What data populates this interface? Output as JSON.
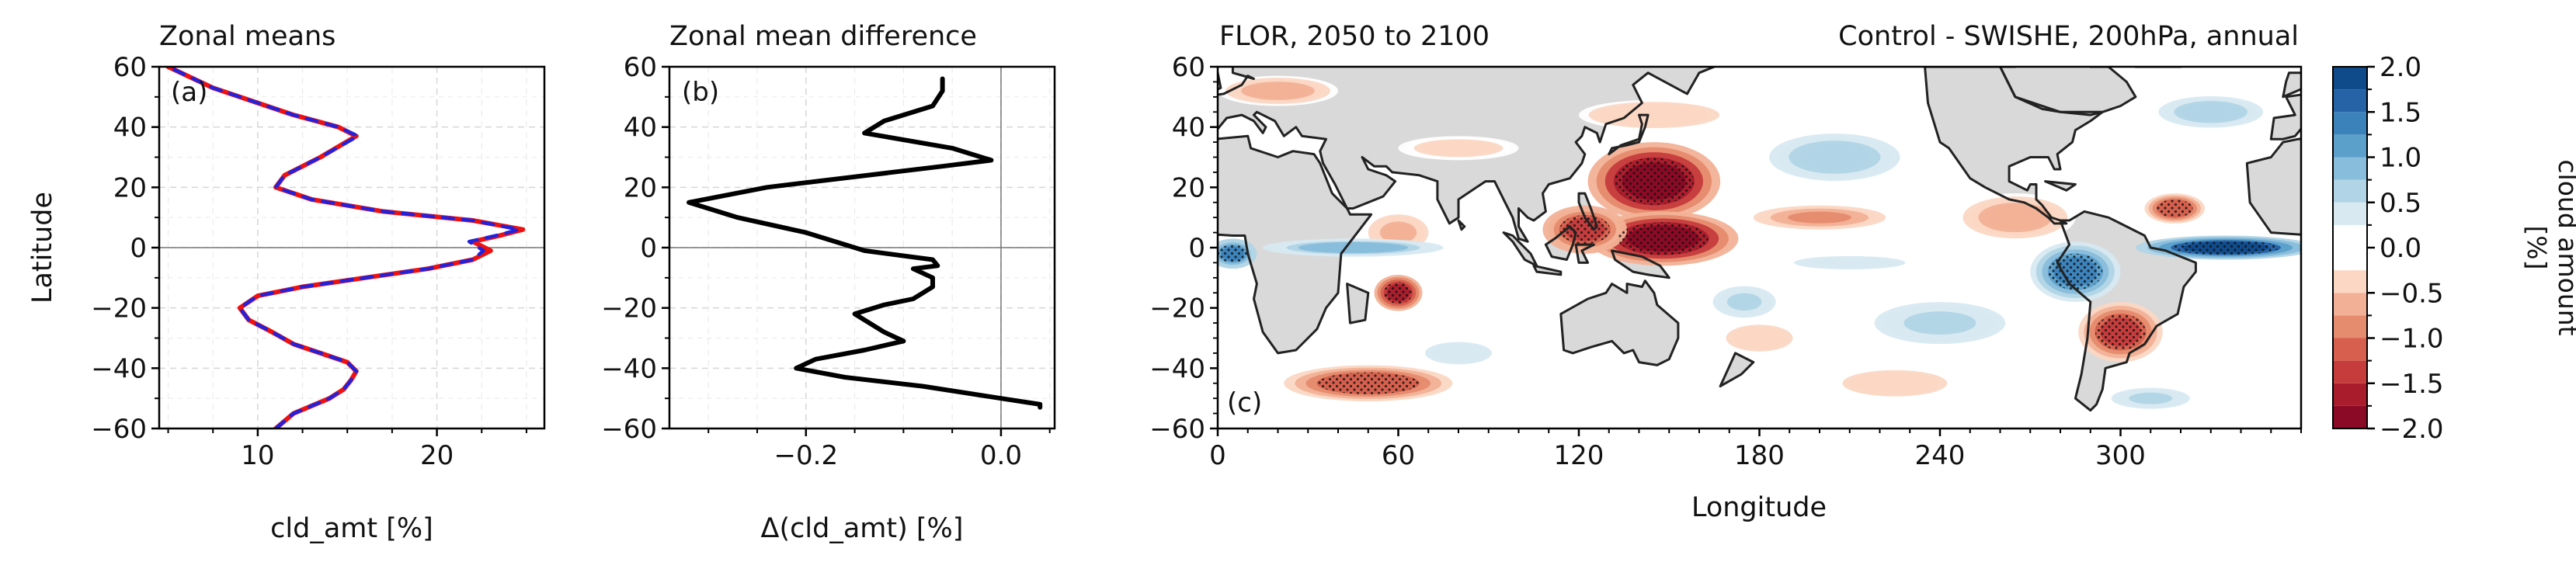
{
  "chart_data": [
    {
      "panel": "a",
      "type": "line",
      "title": "Zonal means",
      "panel_label": "(a)",
      "xlabel": "cld_amt [%]",
      "ylabel": "Latitude",
      "xlim": [
        4.5,
        26
      ],
      "ylim": [
        -60,
        60
      ],
      "x_ticks": [
        10,
        20
      ],
      "y_ticks": [
        -60,
        -40,
        -20,
        0,
        20,
        40,
        60
      ],
      "y_tick_labels": [
        "−60",
        "−40",
        "−20",
        "0",
        "20",
        "40",
        "60"
      ],
      "grid": true,
      "zero_line": "horizontal",
      "series": [
        {
          "color": "#ee1111",
          "dash": "solid",
          "x": [
            11.0,
            12.0,
            14.0,
            14.8,
            15.2,
            15.5,
            15.0,
            13.5,
            12.0,
            10.8,
            9.5,
            9.0,
            10.0,
            12.5,
            16.0,
            19.5,
            22.0,
            23.0,
            22.0,
            23.5,
            24.8,
            22.0,
            17.0,
            13.0,
            11.0,
            11.5,
            13.5,
            15.5,
            14.5,
            12.0,
            10.0,
            7.5,
            5.0
          ],
          "y": [
            -60,
            -55,
            -50,
            -47,
            -44,
            -41,
            -38,
            -35,
            -32,
            -28,
            -24,
            -20,
            -16,
            -13,
            -10,
            -7,
            -4,
            -1,
            2,
            4,
            6,
            9,
            12,
            16,
            20,
            24,
            30,
            37,
            40,
            44,
            48,
            53,
            60
          ]
        },
        {
          "color": "#2222dd",
          "dash": "dashed",
          "x": [
            11.0,
            12.0,
            14.0,
            14.8,
            15.2,
            15.5,
            15.0,
            13.5,
            12.0,
            10.8,
            9.5,
            9.0,
            10.0,
            12.5,
            16.0,
            19.5,
            22.0,
            22.6,
            21.8,
            23.3,
            24.6,
            22.0,
            17.0,
            13.0,
            11.0,
            11.5,
            13.5,
            15.6,
            14.5,
            12.0,
            10.0,
            7.5,
            5.0
          ],
          "y": [
            -60,
            -55,
            -50,
            -47,
            -44,
            -41,
            -38,
            -35,
            -32,
            -28,
            -24,
            -20,
            -16,
            -13,
            -10,
            -7,
            -4,
            -1,
            2,
            4,
            6,
            9,
            12,
            16,
            20,
            24,
            30,
            37,
            40,
            44,
            48,
            53,
            60
          ]
        }
      ]
    },
    {
      "panel": "b",
      "type": "line",
      "title": "Zonal mean difference",
      "panel_label": "(b)",
      "xlabel": "Δ(cld_amt) [%]",
      "ylabel": "",
      "xlim": [
        -0.34,
        0.055
      ],
      "ylim": [
        -60,
        60
      ],
      "x_ticks": [
        -0.2,
        0.0
      ],
      "x_tick_labels": [
        "−0.2",
        "0.0"
      ],
      "y_ticks": [
        -60,
        -40,
        -20,
        0,
        20,
        40,
        60
      ],
      "y_tick_labels": [
        "−60",
        "−40",
        "−20",
        "0",
        "20",
        "40",
        "60"
      ],
      "grid": true,
      "zero_line": "both",
      "series": [
        {
          "color": "#000000",
          "dash": "solid",
          "x": [
            0.04,
            0.04,
            0.0,
            -0.08,
            -0.16,
            -0.21,
            -0.19,
            -0.14,
            -0.1,
            -0.12,
            -0.15,
            -0.12,
            -0.09,
            -0.07,
            -0.07,
            -0.09,
            -0.065,
            -0.07,
            -0.14,
            -0.16,
            -0.2,
            -0.27,
            -0.32,
            -0.24,
            -0.06,
            -0.01,
            -0.05,
            -0.14,
            -0.12,
            -0.07,
            -0.06,
            -0.06
          ],
          "y": [
            -53,
            -52,
            -50,
            -46,
            -43,
            -40,
            -37,
            -34,
            -31,
            -28,
            -22,
            -19,
            -17,
            -13,
            -10,
            -7,
            -6,
            -4,
            -1,
            1,
            5,
            10,
            15,
            20,
            27,
            29,
            33,
            38,
            42,
            47,
            52,
            56
          ]
        }
      ]
    },
    {
      "panel": "c",
      "type": "heatmap",
      "title": "FLOR, 2050 to 2100",
      "title_right": "Control - SWISHE, 200hPa, annual",
      "panel_label": "(c)",
      "xlabel": "Longitude",
      "ylabel": "",
      "xlim": [
        0,
        360
      ],
      "ylim": [
        -60,
        60
      ],
      "x_ticks": [
        0,
        60,
        120,
        180,
        240,
        300
      ],
      "y_ticks": [
        -60,
        -40,
        -20,
        0,
        20,
        40,
        60
      ],
      "y_tick_labels": [
        "−60",
        "−40",
        "−20",
        "0",
        "20",
        "40",
        "60"
      ],
      "colorbar": {
        "label": "cloud amount [%]",
        "levels": [
          -2.0,
          -1.75,
          -1.5,
          -1.25,
          -1.0,
          -0.75,
          -0.5,
          -0.25,
          0.25,
          0.5,
          0.75,
          1.0,
          1.25,
          1.5,
          1.75,
          2.0
        ],
        "tick_values": [
          -2.0,
          -1.5,
          -1.0,
          -0.5,
          0.0,
          0.5,
          1.0,
          1.5,
          2.0
        ],
        "tick_labels": [
          "−2.0",
          "−1.5",
          "−1.0",
          "−0.5",
          "0.0",
          "0.5",
          "1.0",
          "1.5",
          "2.0"
        ],
        "tick_values_minor": [
          -1.75,
          -1.25,
          -0.75,
          0.25,
          0.75,
          1.25,
          1.75
        ],
        "colors": [
          "#8b0a25",
          "#a91c2c",
          "#c63b3c",
          "#d6604d",
          "#e58b6e",
          "#f2b196",
          "#fbd7c4",
          "#ffffff",
          "#d8e9f1",
          "#b1d5e6",
          "#88bddb",
          "#5b9fcb",
          "#3b82bb",
          "#2563a6",
          "#0f4a8a"
        ]
      },
      "land_color": "#d9d9d9",
      "stipple": "statistically significant regions",
      "anomalies": [
        {
          "lon": 145,
          "lat": 22,
          "rx": 22,
          "ry": 13,
          "value": -1.9
        },
        {
          "lon": 148,
          "lat": 3,
          "rx": 25,
          "ry": 9,
          "value": -1.9
        },
        {
          "lon": 122,
          "lat": 6,
          "rx": 14,
          "ry": 8,
          "value": -1.4
        },
        {
          "lon": 200,
          "lat": 10,
          "rx": 22,
          "ry": 4,
          "value": -0.8
        },
        {
          "lon": 60,
          "lat": -15,
          "rx": 8,
          "ry": 6,
          "value": -1.6
        },
        {
          "lon": 60,
          "lat": 5,
          "rx": 10,
          "ry": 6,
          "value": -0.7
        },
        {
          "lon": 50,
          "lat": -45,
          "rx": 28,
          "ry": 6,
          "value": -1.2
        },
        {
          "lon": 300,
          "lat": -28,
          "rx": 14,
          "ry": 10,
          "value": -1.3
        },
        {
          "lon": 318,
          "lat": 13,
          "rx": 10,
          "ry": 5,
          "value": -1.2
        },
        {
          "lon": 265,
          "lat": 10,
          "rx": 20,
          "ry": 8,
          "value": -0.6
        },
        {
          "lon": 225,
          "lat": -45,
          "rx": 20,
          "ry": 5,
          "value": -0.5
        },
        {
          "lon": 180,
          "lat": -30,
          "rx": 15,
          "ry": 6,
          "value": -0.4
        },
        {
          "lon": 20,
          "lat": 52,
          "rx": 20,
          "ry": 5,
          "value": -0.6
        },
        {
          "lon": 145,
          "lat": 44,
          "rx": 25,
          "ry": 5,
          "value": -0.5
        },
        {
          "lon": 80,
          "lat": 33,
          "rx": 20,
          "ry": 4,
          "value": -0.4
        },
        {
          "lon": 335,
          "lat": 0,
          "rx": 30,
          "ry": 4,
          "value": 1.8
        },
        {
          "lon": 285,
          "lat": -8,
          "rx": 15,
          "ry": 10,
          "value": 1.3
        },
        {
          "lon": 5,
          "lat": -2,
          "rx": 8,
          "ry": 5,
          "value": 1.4
        },
        {
          "lon": 45,
          "lat": 0,
          "rx": 30,
          "ry": 3,
          "value": 0.9
        },
        {
          "lon": 205,
          "lat": 30,
          "rx": 25,
          "ry": 9,
          "value": 0.6
        },
        {
          "lon": 240,
          "lat": -25,
          "rx": 25,
          "ry": 8,
          "value": 0.5
        },
        {
          "lon": 175,
          "lat": -18,
          "rx": 12,
          "ry": 6,
          "value": 0.5
        },
        {
          "lon": 210,
          "lat": -5,
          "rx": 25,
          "ry": 3,
          "value": 0.4
        },
        {
          "lon": 80,
          "lat": -35,
          "rx": 15,
          "ry": 5,
          "value": 0.4
        },
        {
          "lon": 330,
          "lat": 45,
          "rx": 20,
          "ry": 6,
          "value": 0.6
        },
        {
          "lon": 310,
          "lat": -50,
          "rx": 15,
          "ry": 4,
          "value": 0.5
        }
      ]
    }
  ]
}
